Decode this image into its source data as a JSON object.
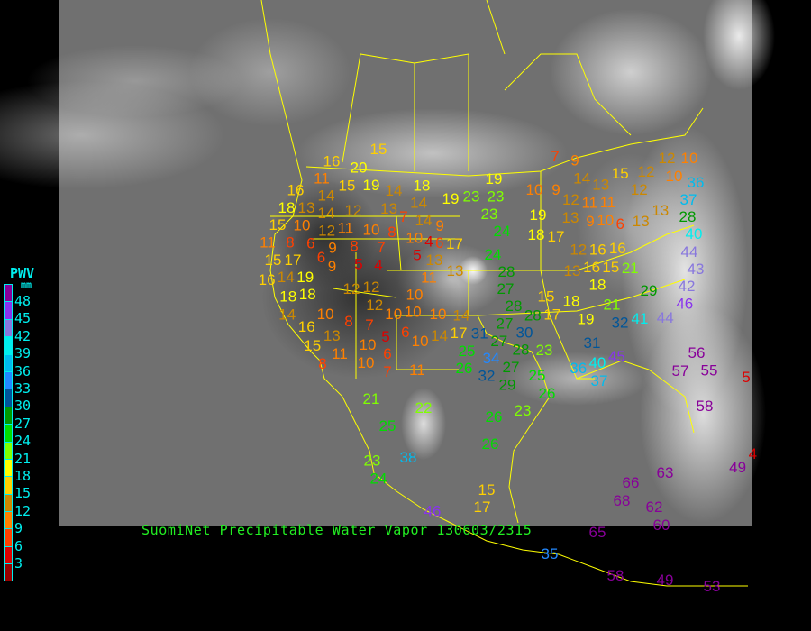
{
  "title": "SuomiNet Precipitable Water Vapor",
  "timestamp": "130603/2315",
  "legend": {
    "title": "PWV",
    "unit": "mm",
    "labels": [
      "48",
      "45",
      "42",
      "39",
      "36",
      "33",
      "30",
      "27",
      "24",
      "21",
      "18",
      "15",
      "12",
      "9",
      "6",
      "3"
    ],
    "colors": [
      "#880099",
      "#8833ee",
      "#8877dd",
      "#00eeee",
      "#00bbee",
      "#2288ff",
      "#005599",
      "#009900",
      "#00dd00",
      "#80ff00",
      "#ffff00",
      "#ffd000",
      "#cc8800",
      "#ff8000",
      "#ff4000",
      "#dd0000",
      "#990000"
    ]
  },
  "map": {
    "background": "#6e6e6e",
    "boundary_color": "#ffff00",
    "station_values": [
      15,
      16,
      20,
      11,
      15,
      19,
      14,
      18,
      16,
      14,
      13,
      18,
      14,
      12,
      12,
      13,
      14,
      7,
      14,
      11,
      10,
      8,
      10,
      9,
      15,
      10,
      11,
      8,
      6,
      9,
      8,
      7,
      4,
      6,
      17,
      15,
      17,
      6,
      9,
      5,
      4,
      5,
      13,
      11,
      13,
      14,
      16,
      19,
      18,
      12,
      12,
      18,
      10,
      12,
      10,
      10,
      10,
      14,
      14,
      10,
      8,
      7,
      16,
      6,
      10,
      14,
      17,
      13,
      15,
      11,
      10,
      5,
      6,
      8,
      10,
      7,
      11,
      7,
      9,
      12,
      10,
      15,
      12,
      10,
      14,
      13,
      10,
      9,
      12,
      11,
      11,
      12,
      36,
      37,
      19,
      23,
      19,
      23,
      23,
      24,
      19,
      13,
      9,
      10,
      6,
      13,
      13,
      28,
      40,
      18,
      17,
      44,
      12,
      16,
      16,
      15,
      16,
      13,
      21,
      43,
      24,
      18,
      28,
      27,
      28,
      29,
      42,
      15,
      18,
      17,
      46,
      21,
      19,
      32,
      41,
      44,
      28,
      27,
      31,
      27,
      30,
      31,
      45,
      25,
      34,
      28,
      23,
      26,
      32,
      27,
      29,
      25,
      26,
      36,
      40,
      37,
      56,
      57,
      55,
      58,
      5,
      21,
      22,
      25,
      26,
      23,
      26,
      38,
      23,
      24,
      63,
      66,
      68,
      62,
      60,
      4,
      49,
      15,
      17,
      46,
      65,
      35,
      58,
      49,
      53
    ]
  }
}
